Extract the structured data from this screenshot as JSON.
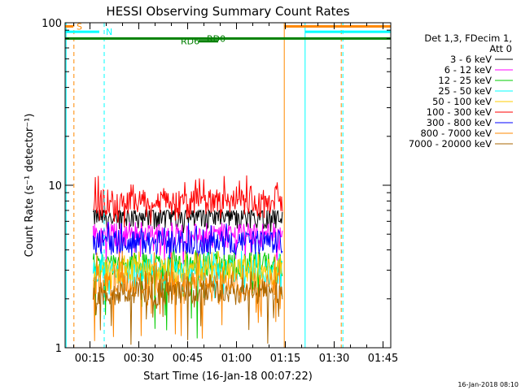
{
  "chart_data": {
    "type": "line",
    "title": "HESSI Observing Summary Count Rates",
    "xlabel": "Start Time (16-Jan-18 00:07:22)",
    "ylabel": "Count Rate (s⁻¹ detector⁻¹)",
    "y_scale": "log",
    "ylim": [
      1,
      100
    ],
    "xlim_minutes": [
      0,
      100
    ],
    "x_tick_labels": [
      "00:15",
      "00:30",
      "00:45",
      "01:00",
      "01:15",
      "01:30",
      "01:45"
    ],
    "x_tick_minutes": [
      7.63,
      22.63,
      37.63,
      52.63,
      67.63,
      82.63,
      97.63
    ],
    "y_tick_labels": [
      "1",
      "10",
      "100"
    ],
    "y_tick_values": [
      1,
      10,
      100
    ],
    "legend_header": [
      "Det 1,3, FDecim 1,",
      "Att 0"
    ],
    "series": [
      {
        "name": "3 - 6 keV",
        "color": "#000000",
        "level": 6.5,
        "low": 5.0,
        "high": 7.0
      },
      {
        "name": "6 - 12 keV",
        "color": "#ff00ff",
        "level": 5.0,
        "low": 3.2,
        "high": 6.0
      },
      {
        "name": "12 - 25 keV",
        "color": "#00cc00",
        "level": 3.3,
        "low": 1.0,
        "high": 4.0
      },
      {
        "name": "25 - 50 keV",
        "color": "#00ffff",
        "level": 3.0,
        "low": 2.0,
        "high": 4.0
      },
      {
        "name": "50 - 100 keV",
        "color": "#ffcc00",
        "level": 3.0,
        "low": 2.0,
        "high": 4.0
      },
      {
        "name": "100 - 300 keV",
        "color": "#ff0000",
        "level": 8.0,
        "low": 5.5,
        "high": 11.5
      },
      {
        "name": "300 - 800 keV",
        "color": "#0000ff",
        "level": 4.5,
        "low": 3.5,
        "high": 6.0
      },
      {
        "name": "800 - 7000 keV",
        "color": "#ff8800",
        "level": 2.5,
        "low": 1.0,
        "high": 4.0
      },
      {
        "name": "7000 - 20000 keV",
        "color": "#aa6600",
        "level": 2.2,
        "low": 1.0,
        "high": 3.0
      }
    ],
    "data_interval_minutes": [
      8.6,
      66.7
    ],
    "flags": [
      {
        "label": "S",
        "color": "#ff8800",
        "y": 95,
        "x_start": 0,
        "x_end": 2.5,
        "label_at": 3.5
      },
      {
        "label": "N",
        "color": "#00ffff",
        "y": 88,
        "x_start": 0,
        "x_end": 10.5,
        "label_at": 12.5
      },
      {
        "label": "RD0",
        "color": "#008000",
        "y": 80,
        "x_start": 0,
        "x_end": 100,
        "label_at": 43.5
      },
      {
        "label": "RD6",
        "color": "#008000",
        "y": 77,
        "x_start": 41,
        "x_end": 47,
        "label_at": 35.5
      }
    ],
    "after_flags": [
      {
        "color": "#ff8800",
        "y": 95,
        "x_start": 67.3,
        "x_end": 100
      },
      {
        "color": "#00ffff",
        "y": 88,
        "x_start": 73.7,
        "x_end": 100
      }
    ],
    "vertical_lines": [
      {
        "color": "#00ffff",
        "x": 0.3,
        "style": "solid"
      },
      {
        "color": "#ff8800",
        "x": 2.7,
        "style": "dashed"
      },
      {
        "color": "#00ffff",
        "x": 12.0,
        "style": "dashed"
      },
      {
        "color": "#ff8800",
        "x": 67.3,
        "style": "solid"
      },
      {
        "color": "#00ffff",
        "x": 73.7,
        "style": "solid"
      },
      {
        "color": "#ff8800",
        "x": 84.8,
        "style": "dashed"
      },
      {
        "color": "#00ffff",
        "x": 85.3,
        "style": "dashed"
      }
    ],
    "grid": false,
    "legend_placement": "right"
  },
  "footer": {
    "timestamp": "16-Jan-2018 08:10"
  }
}
